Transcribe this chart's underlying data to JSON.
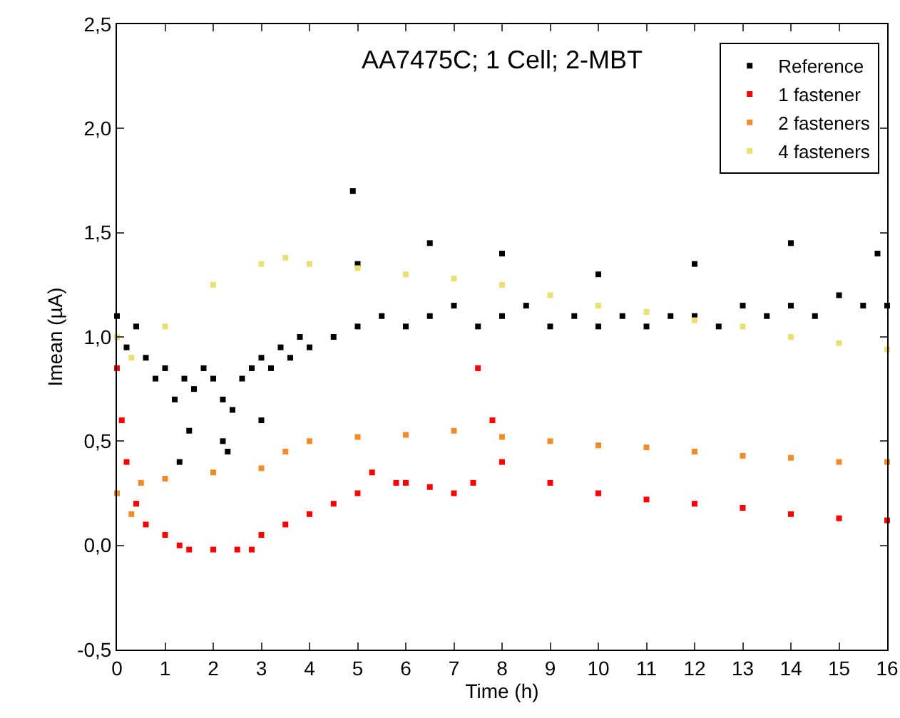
{
  "chart_data": {
    "type": "scatter",
    "title": "AA7475C; 1 Cell; 2-MBT",
    "xlabel": "Time (h)",
    "ylabel": "Imean (µA)",
    "marker": "square",
    "legend": "top right",
    "grid": false,
    "xlim": [
      0,
      16
    ],
    "xticks": [
      0,
      1,
      2,
      3,
      4,
      5,
      6,
      7,
      8,
      9,
      10,
      11,
      12,
      13,
      14,
      15,
      16
    ],
    "ylim": [
      -0.5,
      2.5
    ],
    "yticks": [
      {
        "value": -0.5,
        "label": "-0,5"
      },
      {
        "value": 0,
        "label": "0,0"
      },
      {
        "value": 0.5,
        "label": "0,5"
      },
      {
        "value": 1,
        "label": "1,0"
      },
      {
        "value": 1.5,
        "label": "1,5"
      },
      {
        "value": 2,
        "label": "2,0"
      },
      {
        "value": 2.5,
        "label": "2,5"
      }
    ],
    "series": [
      {
        "name": "Reference",
        "color": "#000000",
        "x": [
          0,
          0.2,
          0.4,
          0.6,
          0.8,
          1,
          1.2,
          1.4,
          1.6,
          1.8,
          2,
          2.2,
          2.4,
          2.6,
          2.8,
          3,
          3.2,
          3.4,
          3.6,
          3.8,
          4,
          4.5,
          5,
          5.5,
          6,
          6.5,
          7,
          7.5,
          8,
          8.5,
          9,
          9.5,
          10,
          10.5,
          11,
          11.5,
          12,
          12.5,
          13,
          13.5,
          14,
          14.5,
          15,
          15.5,
          16,
          1.5,
          2.2,
          3,
          5,
          6.5,
          8,
          10,
          12,
          14,
          15.8,
          4.9,
          1.3,
          2.3
        ],
        "values": [
          1.1,
          0.95,
          1.05,
          0.9,
          0.8,
          0.85,
          0.7,
          0.8,
          0.75,
          0.85,
          0.8,
          0.7,
          0.65,
          0.8,
          0.85,
          0.9,
          0.85,
          0.95,
          0.9,
          1.0,
          0.95,
          1.0,
          1.05,
          1.1,
          1.05,
          1.1,
          1.15,
          1.05,
          1.1,
          1.15,
          1.05,
          1.1,
          1.05,
          1.1,
          1.05,
          1.1,
          1.1,
          1.05,
          1.15,
          1.1,
          1.15,
          1.1,
          1.2,
          1.15,
          1.15,
          0.55,
          0.5,
          0.6,
          1.35,
          1.45,
          1.4,
          1.3,
          1.35,
          1.45,
          1.4,
          1.7,
          0.4,
          0.45
        ]
      },
      {
        "name": "1 fastener",
        "color": "#ff0000",
        "x": [
          0,
          0.1,
          0.2,
          0.4,
          0.6,
          1,
          1.3,
          1.5,
          2,
          2.5,
          2.8,
          3,
          3.5,
          4,
          4.5,
          5,
          5.3,
          5.8,
          6,
          6.5,
          7,
          7.4,
          7.5,
          7.8,
          8,
          9,
          10,
          11,
          12,
          13,
          14,
          15,
          16
        ],
        "values": [
          0.85,
          0.6,
          0.4,
          0.2,
          0.1,
          0.05,
          0,
          -0.02,
          -0.02,
          -0.02,
          -0.02,
          0.05,
          0.1,
          0.15,
          0.2,
          0.25,
          0.35,
          0.3,
          0.3,
          0.28,
          0.25,
          0.3,
          0.85,
          0.6,
          0.4,
          0.3,
          0.25,
          0.22,
          0.2,
          0.18,
          0.15,
          0.13,
          0.12
        ]
      },
      {
        "name": "2 fasteners",
        "color": "#f08c2c",
        "x": [
          0,
          0.3,
          0.5,
          1,
          2,
          3,
          3.5,
          4,
          5,
          6,
          7,
          8,
          9,
          10,
          11,
          12,
          13,
          14,
          15,
          16
        ],
        "values": [
          0.25,
          0.15,
          0.3,
          0.32,
          0.35,
          0.37,
          0.45,
          0.5,
          0.52,
          0.53,
          0.55,
          0.52,
          0.5,
          0.48,
          0.47,
          0.45,
          0.43,
          0.42,
          0.4,
          0.4
        ]
      },
      {
        "name": "4 fasteners",
        "color": "#e8e070",
        "x": [
          0,
          0.3,
          1,
          2,
          3,
          3.5,
          4,
          5,
          6,
          7,
          8,
          9,
          10,
          11,
          12,
          13,
          14,
          15,
          16
        ],
        "values": [
          1.0,
          0.9,
          1.05,
          1.25,
          1.35,
          1.38,
          1.35,
          1.33,
          1.3,
          1.28,
          1.25,
          1.2,
          1.15,
          1.12,
          1.08,
          1.05,
          1.0,
          0.97,
          0.94
        ]
      }
    ]
  }
}
